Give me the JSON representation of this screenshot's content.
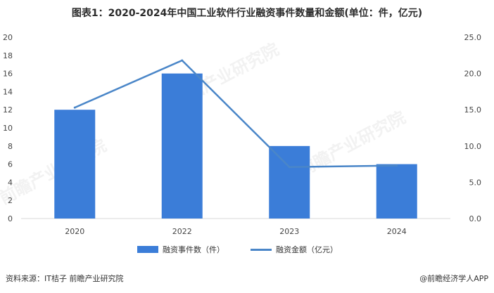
{
  "chart_data": {
    "type": "bar",
    "title": "图表1：2020-2024年中国工业软件行业融资事件数量和金额(单位：件，亿元)",
    "categories": [
      "2020",
      "2022",
      "2023",
      "2024"
    ],
    "series": [
      {
        "name": "融资事件数（件）",
        "kind": "bar",
        "axis": "left",
        "color": "#3b7dd8",
        "values": [
          12,
          16,
          8,
          6
        ]
      },
      {
        "name": "融资金额（亿元）",
        "kind": "line",
        "axis": "right",
        "color": "#4a86c8",
        "values": [
          15.3,
          21.8,
          7.1,
          7.3
        ]
      }
    ],
    "left_axis": {
      "ylim": [
        0,
        20
      ],
      "ticks": [
        "0",
        "2",
        "4",
        "6",
        "8",
        "10",
        "12",
        "14",
        "16",
        "18",
        "20"
      ]
    },
    "right_axis": {
      "ylim": [
        0,
        25
      ],
      "ticks": [
        "0.0",
        "5.0",
        "10.0",
        "15.0",
        "20.0",
        "25.0"
      ]
    },
    "legend_position": "bottom",
    "grid": false
  },
  "footer": {
    "source": "资料来源：IT桔子 前瞻产业研究院",
    "brand": "@前瞻经济学人APP"
  },
  "watermark": "前瞻产业研究院"
}
